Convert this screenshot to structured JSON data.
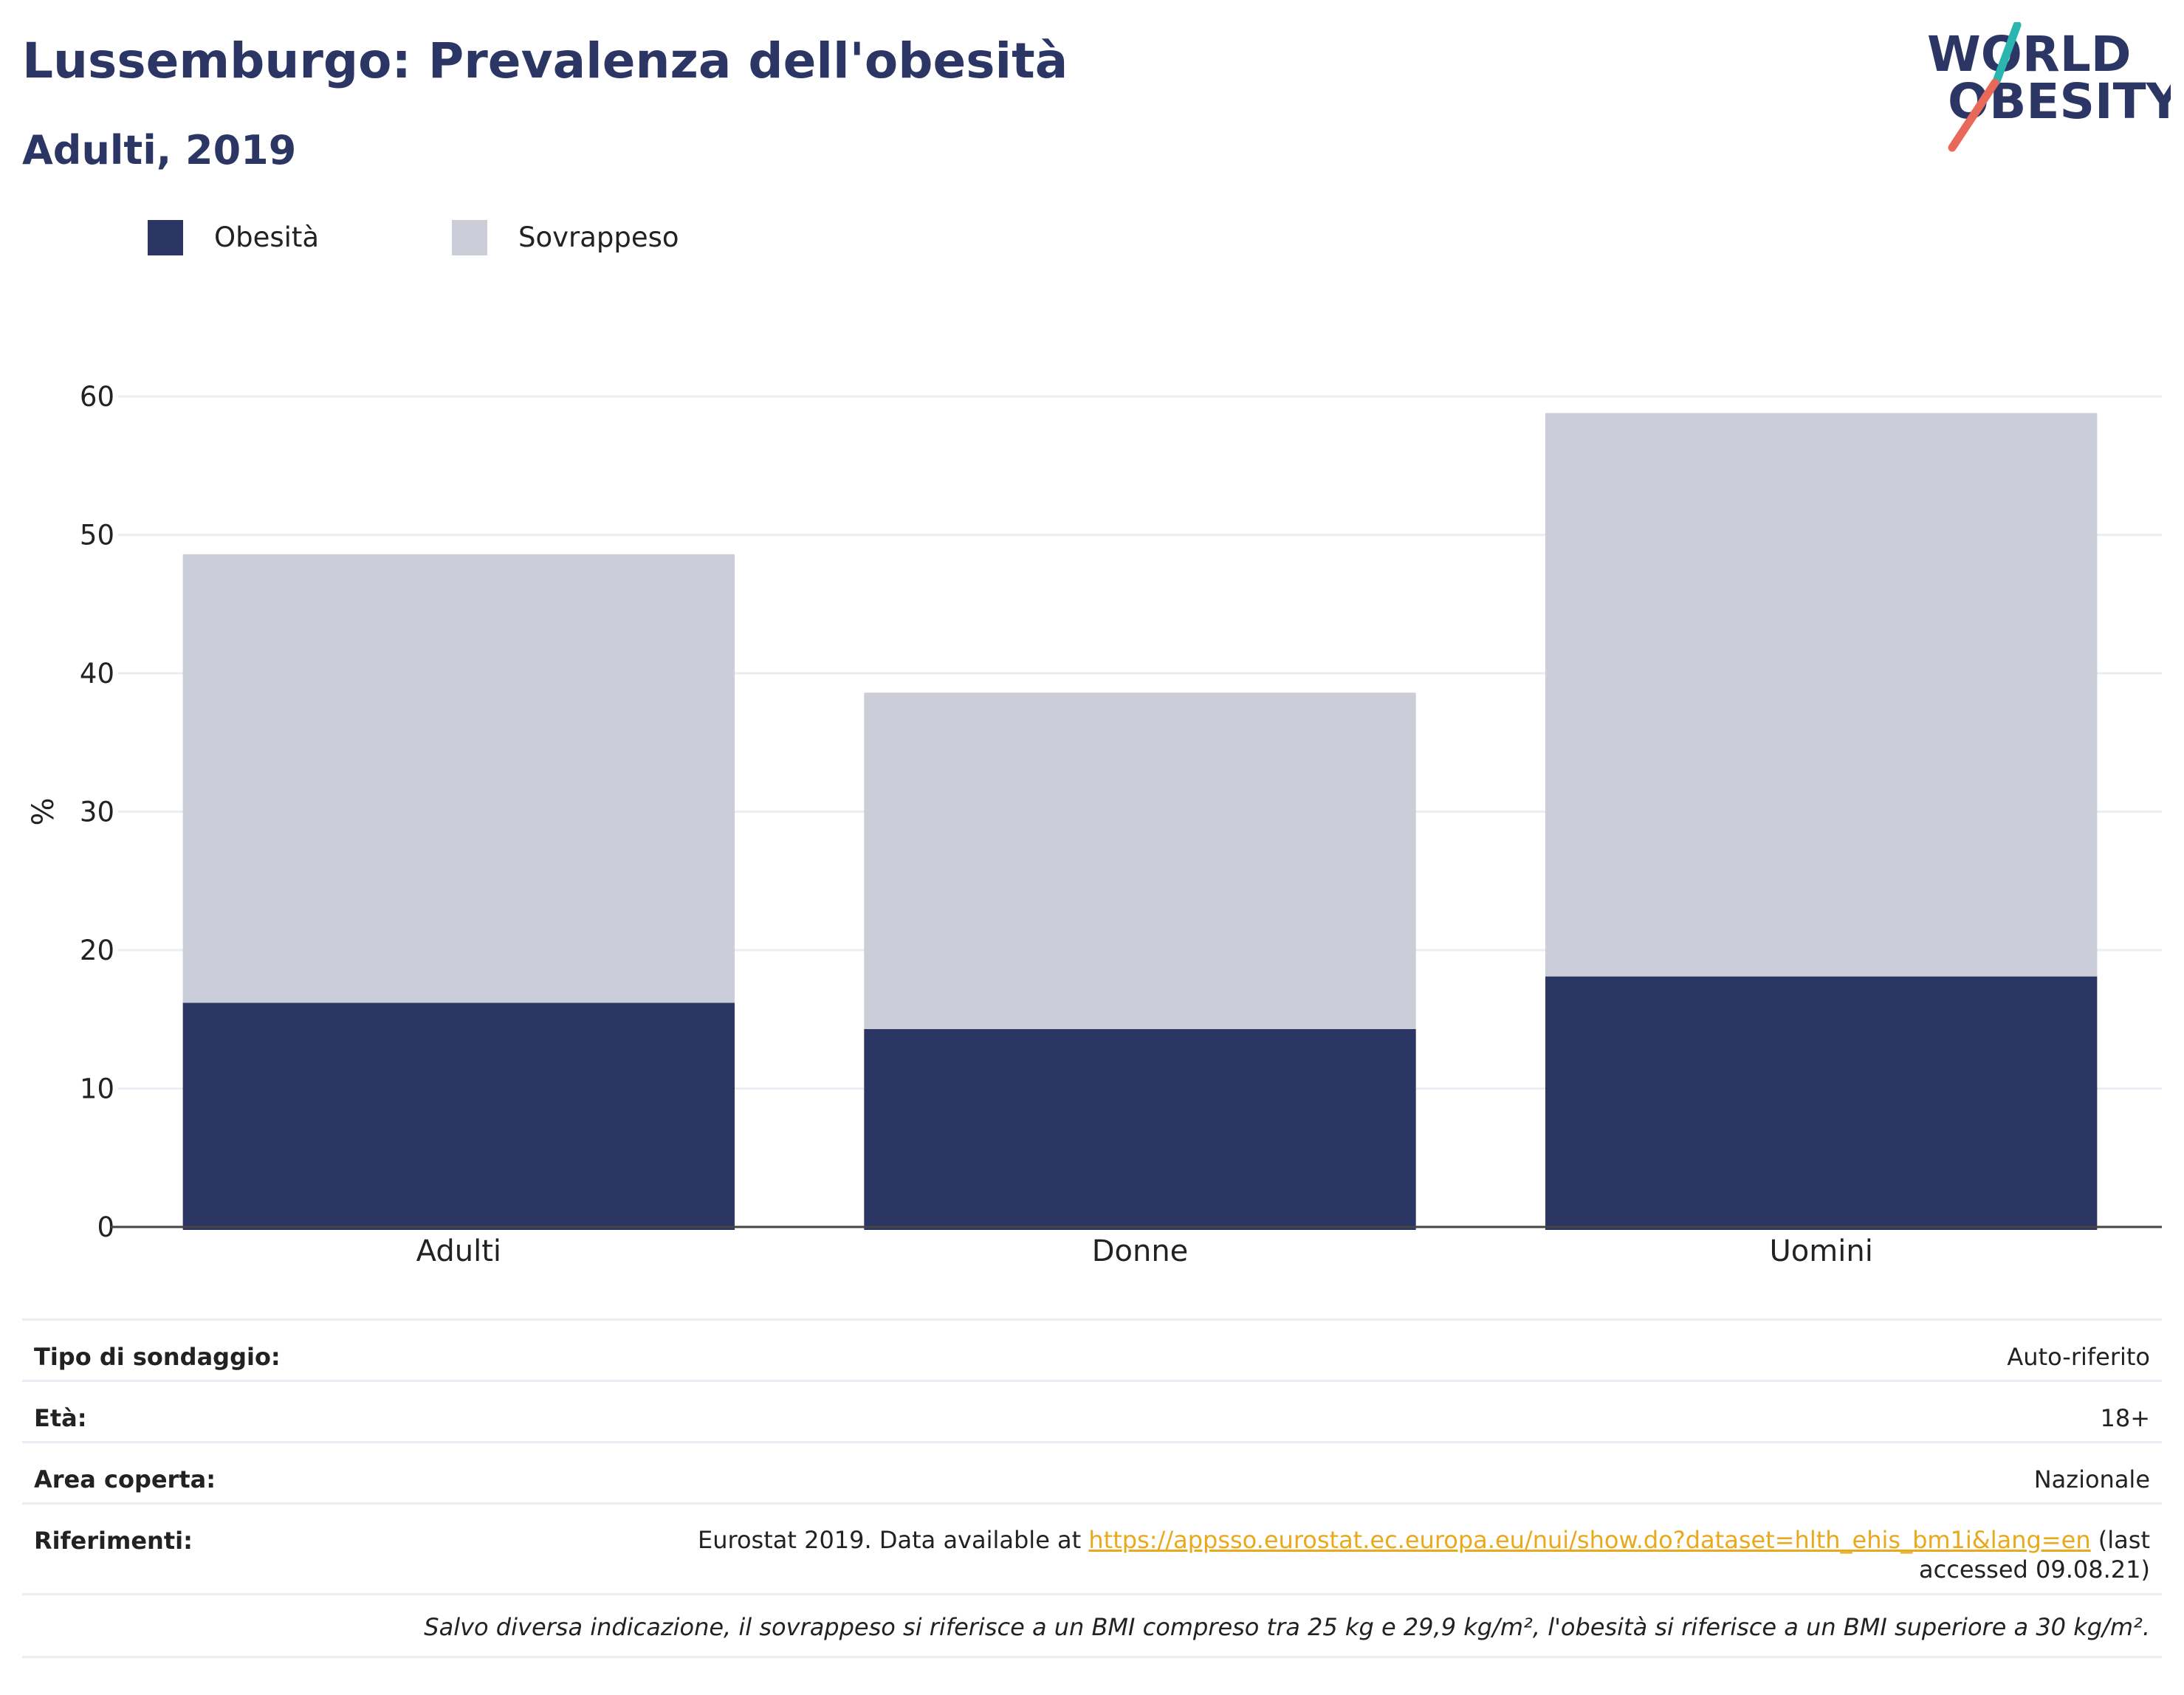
{
  "title": "Lussemburgo: Prevalenza dell'obesità",
  "subtitle": "Adulti, 2019",
  "logo": {
    "line1": "WORLD",
    "line2": "OBESITY",
    "icon": "world-obesity-logo"
  },
  "colors": {
    "obesity": "#2b3665",
    "overweight": "#cbcdd9",
    "title": "#2b3665",
    "link": "#e8a91d",
    "grid": "#ececf4",
    "axis": "#444444"
  },
  "legend": [
    {
      "label": "Obesità",
      "color": "#2b3665"
    },
    {
      "label": "Sovrappeso",
      "color": "#cbcdd9"
    }
  ],
  "chart_data": {
    "type": "bar",
    "stacked": true,
    "categories": [
      "Adulti",
      "Donne",
      "Uomini"
    ],
    "series": [
      {
        "name": "Obesità",
        "values": [
          16.2,
          14.3,
          18.1
        ]
      },
      {
        "name": "Sovrappeso",
        "values": [
          32.4,
          24.3,
          40.7
        ]
      }
    ],
    "ylabel": "%",
    "ylim": [
      0,
      60
    ],
    "yticks": [
      0,
      10,
      20,
      30,
      40,
      50,
      60
    ],
    "grid": true,
    "legend_position": "top-left"
  },
  "info": {
    "survey_type_label": "Tipo di sondaggio:",
    "survey_type_value": "Auto-riferito",
    "age_label": "Età:",
    "age_value": "18+",
    "area_label": "Area coperta:",
    "area_value": "Nazionale",
    "references_label": "Riferimenti:",
    "references_prefix": "Eurostat 2019. Data available at ",
    "references_link": "https://appsso.eurostat.ec.europa.eu/nui/show.do?dataset=hlth_ehis_bm1i&lang=en",
    "references_suffix": " (last accessed 09.08.21)",
    "note": "Salvo diversa indicazione, il sovrappeso si riferisce a un BMI compreso tra 25 kg e 29,9 kg/m², l'obesità si riferisce a un BMI superiore a 30 kg/m²."
  }
}
